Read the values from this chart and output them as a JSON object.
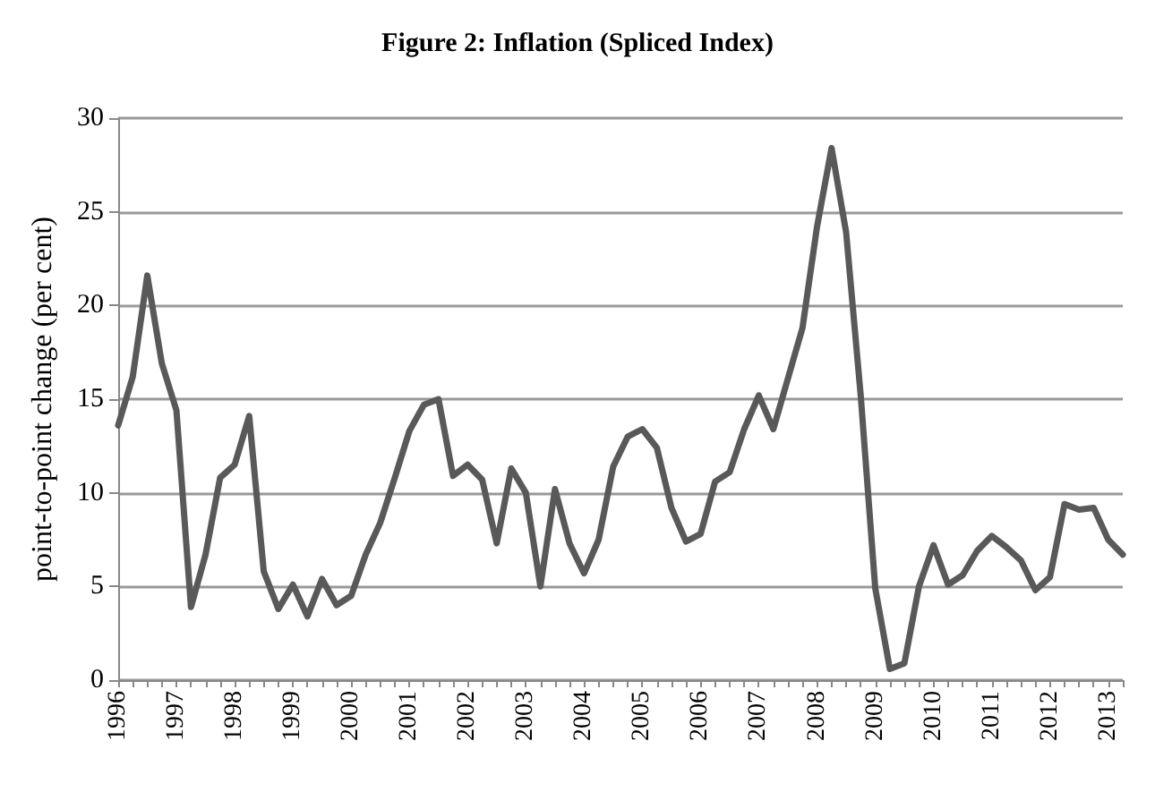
{
  "chart_data": {
    "type": "line",
    "title": "Figure 2: Inflation (Spliced Index)",
    "ylabel": "point-to-point change (per cent)",
    "categories": [
      "1996",
      null,
      null,
      null,
      "1997",
      null,
      null,
      null,
      "1998",
      null,
      null,
      null,
      "1999",
      null,
      null,
      null,
      "2000",
      null,
      null,
      null,
      "2001",
      null,
      null,
      null,
      "2002",
      null,
      null,
      null,
      "2003",
      null,
      null,
      null,
      "2004",
      null,
      null,
      null,
      "2005",
      null,
      null,
      null,
      "2006",
      null,
      null,
      null,
      "2007",
      null,
      null,
      null,
      "2008",
      null,
      null,
      null,
      "2009",
      null,
      null,
      null,
      "2010",
      null,
      null,
      null,
      "2011",
      null,
      null,
      null,
      "2012",
      null,
      null,
      null,
      "2013",
      null
    ],
    "series": [
      {
        "color": "#595959",
        "values": [
          13.6,
          16.2,
          21.6,
          16.9,
          14.4,
          3.9,
          6.7,
          10.8,
          11.5,
          14.1,
          5.8,
          3.8,
          5.1,
          3.4,
          5.4,
          4.0,
          4.5,
          6.7,
          8.4,
          10.8,
          13.3,
          14.7,
          15.0,
          10.9,
          11.5,
          10.7,
          7.3,
          11.3,
          10.0,
          5.0,
          10.2,
          7.3,
          5.7,
          7.5,
          11.4,
          13.0,
          13.4,
          12.4,
          9.2,
          7.4,
          7.8,
          10.6,
          11.1,
          13.4,
          15.2,
          13.4,
          16.1,
          18.8,
          24.2,
          28.4,
          23.9,
          15.2,
          4.9,
          0.6,
          0.9,
          5.0,
          7.2,
          5.1,
          5.6,
          6.9,
          7.7,
          7.1,
          6.4,
          4.8,
          5.5,
          9.4,
          9.1,
          9.2,
          7.5,
          6.7
        ]
      }
    ],
    "ylim": [
      0,
      30
    ],
    "yticks": [
      0,
      5,
      10,
      15,
      20,
      25,
      30
    ],
    "grid": "y",
    "marker": "none",
    "line_style": "solid"
  }
}
